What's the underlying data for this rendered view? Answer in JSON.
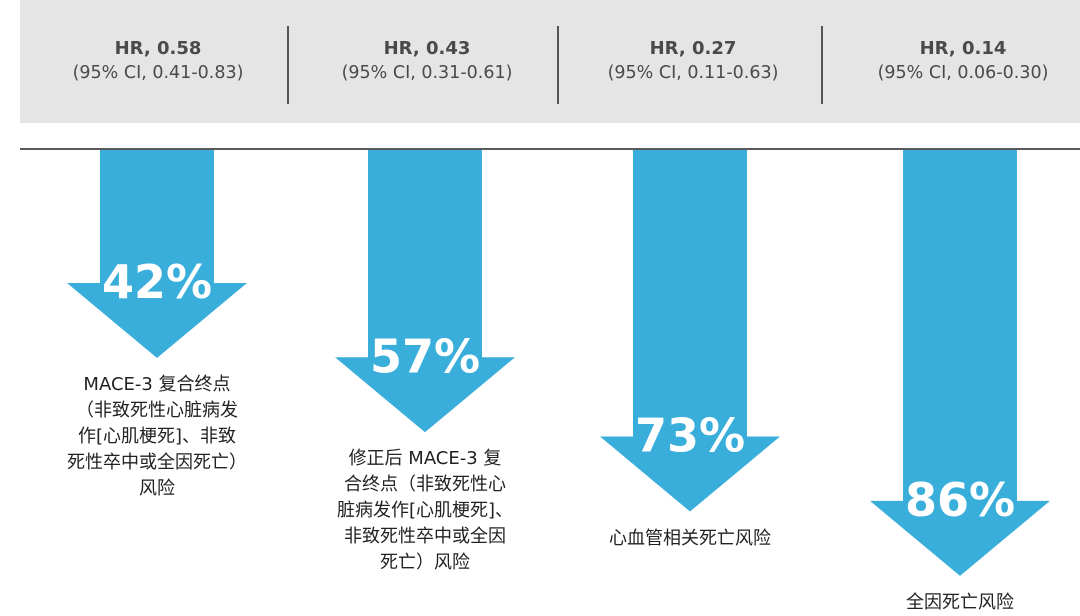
{
  "header": {
    "cells": [
      {
        "hr": "HR, 0.58",
        "ci": "(95% CI, 0.41-0.83)"
      },
      {
        "hr": "HR, 0.43",
        "ci": "(95% CI, 0.31-0.61)"
      },
      {
        "hr": "HR, 0.27",
        "ci": "(95% CI, 0.11-0.63)"
      },
      {
        "hr": "HR, 0.14",
        "ci": "(95% CI, 0.06-0.30)"
      }
    ]
  },
  "chart_data": {
    "type": "bar",
    "direction": "down",
    "categories": [
      "MACE-3 复合终点（非致死性心脏病发作[心肌梗死]、非致死性卒中或全因死亡）风险",
      "修正后 MACE-3 复合终点（非致死性心脏病发作[心肌梗死]、非致死性卒中或全因死亡）风险",
      "心血管相关死亡风险",
      "全因死亡风险"
    ],
    "values": [
      42,
      57,
      73,
      86
    ],
    "value_labels": [
      "42%",
      "57%",
      "73%",
      "86%"
    ],
    "hazard_ratios": [
      0.58,
      0.43,
      0.27,
      0.14
    ],
    "ci_low": [
      0.41,
      0.31,
      0.11,
      0.06
    ],
    "ci_high": [
      0.83,
      0.61,
      0.63,
      0.3
    ],
    "color": "#3aaedb",
    "grid": false
  },
  "labels": [
    [
      "MACE-3 复合终点",
      "（非致死性心脏病发",
      "作[心肌梗死]、非致",
      "死性卒中或全因死亡）",
      "风险"
    ],
    [
      "修正后 MACE-3 复",
      "合终点（非致死性心",
      "脏病发作[心肌梗死]、",
      "非致死性卒中或全因",
      "死亡）风险"
    ],
    [
      "心血管相关死亡风险"
    ],
    [
      "全因死亡风险"
    ]
  ]
}
